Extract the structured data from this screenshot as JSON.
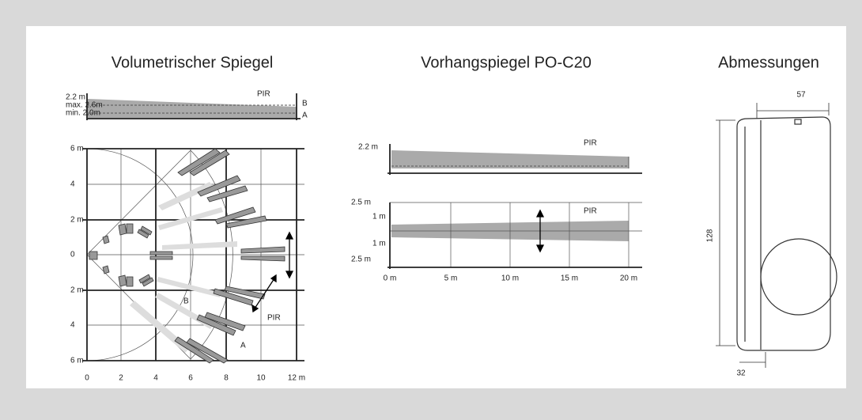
{
  "titles": {
    "volumetric": "Volumetrischer Spiegel",
    "curtain": "Vorhangspiegel PO-C20",
    "dimensions": "Abmessungen"
  },
  "volumetric_side": {
    "height": "2.2 m",
    "max": "max. 2.6m",
    "min": "min. 2.0m",
    "pir": "PIR",
    "b": "B",
    "a": "A"
  },
  "volumetric_top": {
    "y_labels": [
      "6 m",
      "4",
      "2 m",
      "0",
      "2 m",
      "4",
      "6 m"
    ],
    "x_labels": [
      "0",
      "2",
      "4",
      "6",
      "8",
      "10",
      "12 m"
    ],
    "b": "B",
    "pir": "PIR",
    "a": "A"
  },
  "curtain_side": {
    "height": "2.2 m",
    "pir": "PIR"
  },
  "curtain_top": {
    "y_labels": [
      "2.5 m",
      "1 m",
      "1 m",
      "2.5 m"
    ],
    "pir": "PIR",
    "x_labels": [
      "0 m",
      "5 m",
      "10 m",
      "15 m",
      "20 m"
    ]
  },
  "dimensions": {
    "width": "57",
    "height": "128",
    "depth": "32"
  }
}
